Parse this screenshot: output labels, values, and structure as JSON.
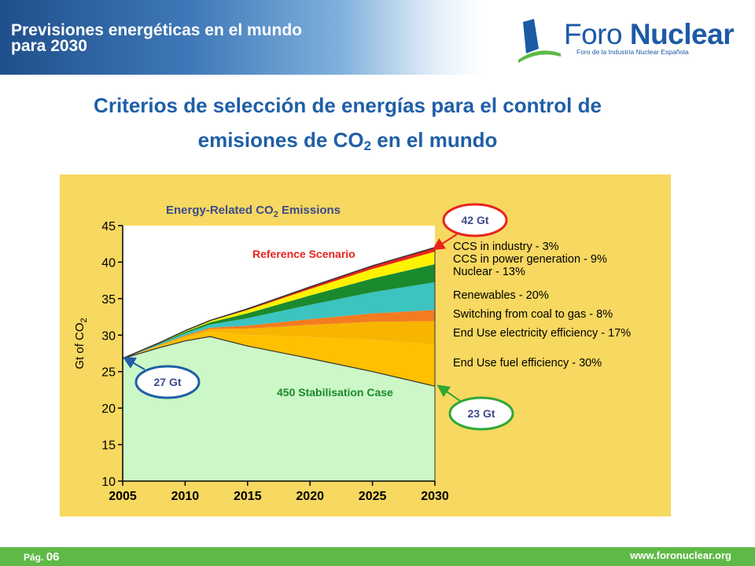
{
  "header": {
    "title_line1": "Previsiones energéticas en el mundo",
    "title_line2": "para 2030",
    "logo_name_light": "Foro",
    "logo_name_bold": "Nuclear",
    "logo_tagline": "Foro de la Industria Nuclear Española"
  },
  "slide": {
    "title_line1": "Criterios de selección de energías para el control de",
    "title_line2_pre": "emisiones de CO",
    "title_line2_sub": "2",
    "title_line2_post": " en el mundo"
  },
  "footer": {
    "page_label": "Pág.",
    "page_number": "06",
    "url": "www.foronuclear.org"
  },
  "colors": {
    "header_blue": "#1f4f8c",
    "title_blue": "#1f5fa7",
    "footer_green": "#5fb946",
    "chart_background": "#f7d860"
  },
  "chart_data": {
    "type": "area",
    "title_pre": "Energy-Related CO",
    "title_sub": "2",
    "title_post": " Emissions",
    "ylabel_pre": "Gt of CO",
    "ylabel_sub": "2",
    "xlabel": "",
    "xlim": [
      2005,
      2030
    ],
    "ylim": [
      10,
      45
    ],
    "xticks": [
      2005,
      2010,
      2015,
      2020,
      2025,
      2030
    ],
    "yticks": [
      10,
      15,
      20,
      25,
      30,
      35,
      40,
      45
    ],
    "grid": false,
    "x": [
      2005,
      2008,
      2010,
      2012,
      2015,
      2020,
      2025,
      2030
    ],
    "reference_scenario": [
      26.8,
      29.0,
      30.6,
      32.0,
      33.6,
      36.6,
      39.5,
      42.0
    ],
    "stabilisation_case": [
      26.8,
      28.3,
      29.2,
      29.8,
      28.5,
      26.8,
      25.0,
      23.0
    ],
    "bands": [
      {
        "name": "CCS in industry - 3%",
        "color": "#e8231d",
        "end_2030": 3
      },
      {
        "name": "CCS in power generation - 9%",
        "color": "#fff200",
        "end_2030": 9
      },
      {
        "name": "Nuclear - 13%",
        "color": "#1b8a2f",
        "end_2030": 13
      },
      {
        "name": "Renewables - 20%",
        "color": "#3cc4c0",
        "end_2030": 20
      },
      {
        "name": "Switching from coal to gas - 8%",
        "color": "#f47c20",
        "end_2030": 8
      },
      {
        "name": "End Use electricity efficiency - 17%",
        "color": "#f7b500",
        "end_2030": 17
      },
      {
        "name": "End Use fuel efficiency - 30%",
        "color": "#ffc000",
        "end_2030": 30
      }
    ],
    "legend_labels": [
      "CCS in industry - 3%",
      "CCS in power generation - 9%",
      "Nuclear - 13%",
      "Renewables - 20%",
      "Switching from coal to gas - 8%",
      "End Use electricity efficiency - 17%",
      "End Use fuel efficiency - 30%"
    ],
    "annotations": {
      "reference_label": "Reference Scenario",
      "stabilisation_label": "450 Stabilisation Case",
      "callout_2030_top": "42 Gt",
      "callout_2005": "27 Gt",
      "callout_2030_bottom": "23 Gt"
    },
    "stabilisation_fill": "#ccf7c6",
    "legend_placement": "right"
  }
}
